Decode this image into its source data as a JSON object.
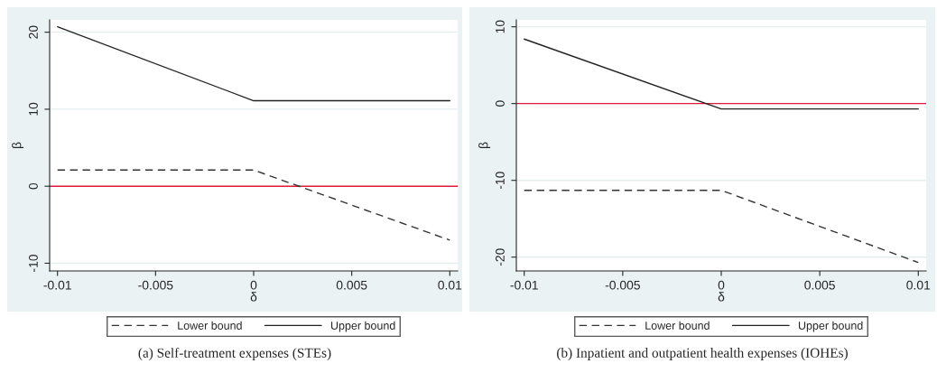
{
  "chart_data": [
    {
      "type": "line",
      "xlabel": "δ",
      "ylabel": "β",
      "xlim": [
        -0.0104,
        0.0104
      ],
      "ylim": [
        -11,
        21.6
      ],
      "xticks": [
        -0.01,
        -0.005,
        {
          "value": 0,
          "label": "0"
        },
        0.005,
        0.01
      ],
      "yticks": [
        -10,
        0,
        10,
        20
      ],
      "grid": "y",
      "legend": "bottom",
      "series": [
        {
          "name": "Lower bound",
          "color": "#333333",
          "line_style": "dashed",
          "x": [
            -0.01,
            0,
            0.01
          ],
          "values": [
            2.1,
            2.1,
            -7.0
          ]
        },
        {
          "name": "Upper bound",
          "color": "#222222",
          "line_style": "solid",
          "x": [
            -0.01,
            0,
            0.01
          ],
          "values": [
            20.7,
            11.1,
            11.1
          ]
        }
      ],
      "ref_lines": [
        {
          "axis": "y",
          "value": 0,
          "color": "#e31a3c"
        }
      ],
      "annotations": [
        "(a) Self-treatment expenses (STEs)"
      ]
    },
    {
      "type": "line",
      "xlabel": "δ",
      "ylabel": "β",
      "xlim": [
        -0.0104,
        0.0104
      ],
      "ylim": [
        -21.8,
        10.9
      ],
      "xticks": [
        -0.01,
        -0.005,
        {
          "value": 0,
          "label": "0"
        },
        0.005,
        0.01
      ],
      "yticks": [
        -20,
        -10,
        0,
        10
      ],
      "grid": "y",
      "legend": "bottom",
      "series": [
        {
          "name": "Lower bound",
          "color": "#333333",
          "line_style": "dashed",
          "x": [
            -0.01,
            0,
            0.01
          ],
          "values": [
            -11.3,
            -11.3,
            -20.7
          ]
        },
        {
          "name": "Upper bound",
          "color": "#222222",
          "line_style": "solid",
          "x": [
            -0.01,
            0,
            0.01
          ],
          "values": [
            8.4,
            -0.7,
            -0.7
          ]
        }
      ],
      "ref_lines": [
        {
          "axis": "y",
          "value": 0,
          "color": "#e31a3c"
        }
      ],
      "annotations": [
        "(b) Inpatient and outpatient health expenses (IOHEs)"
      ]
    }
  ]
}
